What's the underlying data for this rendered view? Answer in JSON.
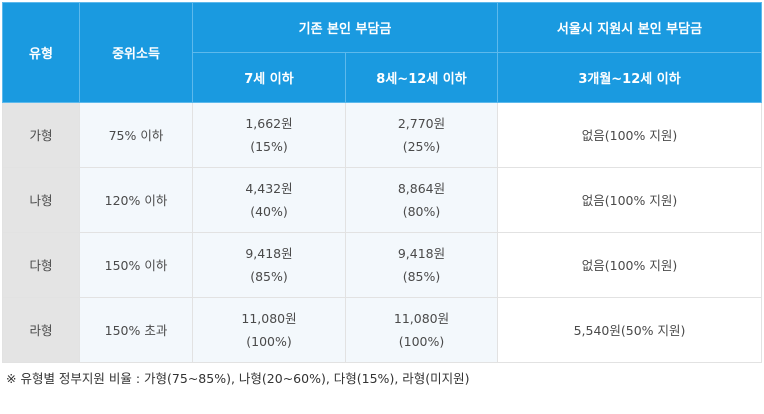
{
  "header": {
    "type": "유형",
    "income": "중위소득",
    "existing_group": "기존 본인 부담금",
    "seoul_group": "서울시 지원시 본인 부담금",
    "sub_age1": "7세 이하",
    "sub_age2": "8세~12세 이하",
    "sub_seoul": "3개월~12세 이하"
  },
  "rows": [
    {
      "type": "가형",
      "income": "75% 이하",
      "c1_amount": "1,662원",
      "c1_pct": "(15%)",
      "c2_amount": "2,770원",
      "c2_pct": "(25%)",
      "seoul": "없음(100% 지원)"
    },
    {
      "type": "나형",
      "income": "120% 이하",
      "c1_amount": "4,432원",
      "c1_pct": "(40%)",
      "c2_amount": "8,864원",
      "c2_pct": "(80%)",
      "seoul": "없음(100% 지원)"
    },
    {
      "type": "다형",
      "income": "150% 이하",
      "c1_amount": "9,418원",
      "c1_pct": "(85%)",
      "c2_amount": "9,418원",
      "c2_pct": "(85%)",
      "seoul": "없음(100% 지원)"
    },
    {
      "type": "라형",
      "income": "150% 초과",
      "c1_amount": "11,080원",
      "c1_pct": "(100%)",
      "c2_amount": "11,080원",
      "c2_pct": "(100%)",
      "seoul": "5,540원(50% 지원)"
    }
  ],
  "note": "※ 유형별 정부지원 비율 : 가형(75~85%), 나형(20~60%), 다형(15%), 라형(미지원)",
  "colors": {
    "header_bg": "#1a9ae0",
    "type_bg": "#e4e4e4",
    "data_bg": "#f3f8fc"
  }
}
